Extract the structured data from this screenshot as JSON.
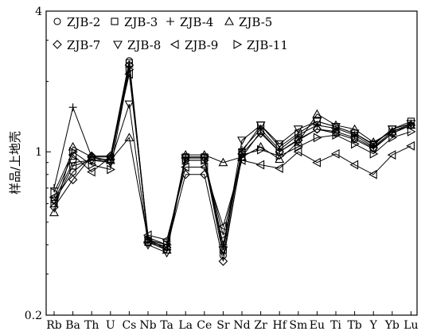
{
  "chart_data": {
    "type": "line",
    "ylabel": "样品/上地壳",
    "yscale": "log",
    "ylim": [
      0.2,
      4
    ],
    "y_tick_labels": [
      "4",
      "1",
      "0.2"
    ],
    "y_tick_values": [
      4,
      1,
      0.2
    ],
    "categories": [
      "Rb",
      "Ba",
      "Th",
      "U",
      "Cs",
      "Nb",
      "Ta",
      "La",
      "Ce",
      "Sr",
      "Nd",
      "Zr",
      "Hf",
      "Sm",
      "Eu",
      "Ti",
      "Tb",
      "Y",
      "Yb",
      "Lu"
    ],
    "legend_position": "top-left",
    "series": [
      {
        "name": "ZJB-2",
        "marker": "circle",
        "values": [
          0.62,
          0.82,
          0.95,
          0.95,
          2.45,
          0.42,
          0.39,
          0.92,
          0.92,
          0.36,
          0.95,
          1.22,
          1.0,
          1.13,
          1.25,
          1.2,
          1.13,
          1.03,
          1.2,
          1.3
        ]
      },
      {
        "name": "ZJB-3",
        "marker": "square",
        "values": [
          0.6,
          0.87,
          0.92,
          0.92,
          2.4,
          0.41,
          0.38,
          0.95,
          0.95,
          0.38,
          1.0,
          1.3,
          1.05,
          1.2,
          1.35,
          1.28,
          1.2,
          1.08,
          1.25,
          1.35
        ]
      },
      {
        "name": "ZJB-4",
        "marker": "plus",
        "values": [
          0.7,
          1.55,
          0.95,
          0.9,
          2.3,
          0.43,
          0.4,
          0.95,
          0.95,
          0.4,
          1.02,
          1.25,
          1.02,
          1.18,
          1.3,
          1.26,
          1.18,
          1.05,
          1.22,
          1.32
        ]
      },
      {
        "name": "ZJB-5",
        "marker": "triangle-up",
        "values": [
          0.55,
          1.05,
          0.95,
          0.92,
          1.15,
          0.42,
          0.38,
          0.97,
          0.97,
          0.9,
          0.95,
          1.05,
          0.93,
          1.1,
          1.45,
          1.3,
          1.25,
          1.1,
          1.22,
          1.3
        ]
      },
      {
        "name": "ZJB-7",
        "marker": "diamond",
        "values": [
          0.58,
          0.76,
          0.96,
          0.96,
          2.35,
          0.41,
          0.39,
          0.8,
          0.8,
          0.34,
          0.98,
          1.2,
          1.0,
          1.12,
          1.25,
          1.22,
          1.15,
          1.04,
          1.2,
          1.3
        ]
      },
      {
        "name": "ZJB-8",
        "marker": "triangle-down",
        "values": [
          0.62,
          0.9,
          0.92,
          0.9,
          1.6,
          0.4,
          0.37,
          0.94,
          0.94,
          0.38,
          1.12,
          1.3,
          1.08,
          1.25,
          1.35,
          1.28,
          1.2,
          1.07,
          1.25,
          1.32
        ]
      },
      {
        "name": "ZJB-9",
        "marker": "triangle-left",
        "values": [
          0.64,
          0.97,
          0.82,
          0.95,
          2.15,
          0.44,
          0.42,
          0.86,
          0.86,
          0.48,
          0.92,
          0.88,
          0.85,
          1.0,
          0.9,
          0.98,
          0.88,
          0.8,
          0.97,
          1.06
        ]
      },
      {
        "name": "ZJB-11",
        "marker": "triangle-right",
        "values": [
          0.67,
          1.0,
          0.88,
          0.84,
          2.25,
          0.42,
          0.4,
          0.92,
          0.92,
          0.44,
          0.97,
          1.02,
          0.96,
          1.05,
          1.15,
          1.18,
          1.08,
          0.98,
          1.15,
          1.22
        ]
      }
    ]
  }
}
